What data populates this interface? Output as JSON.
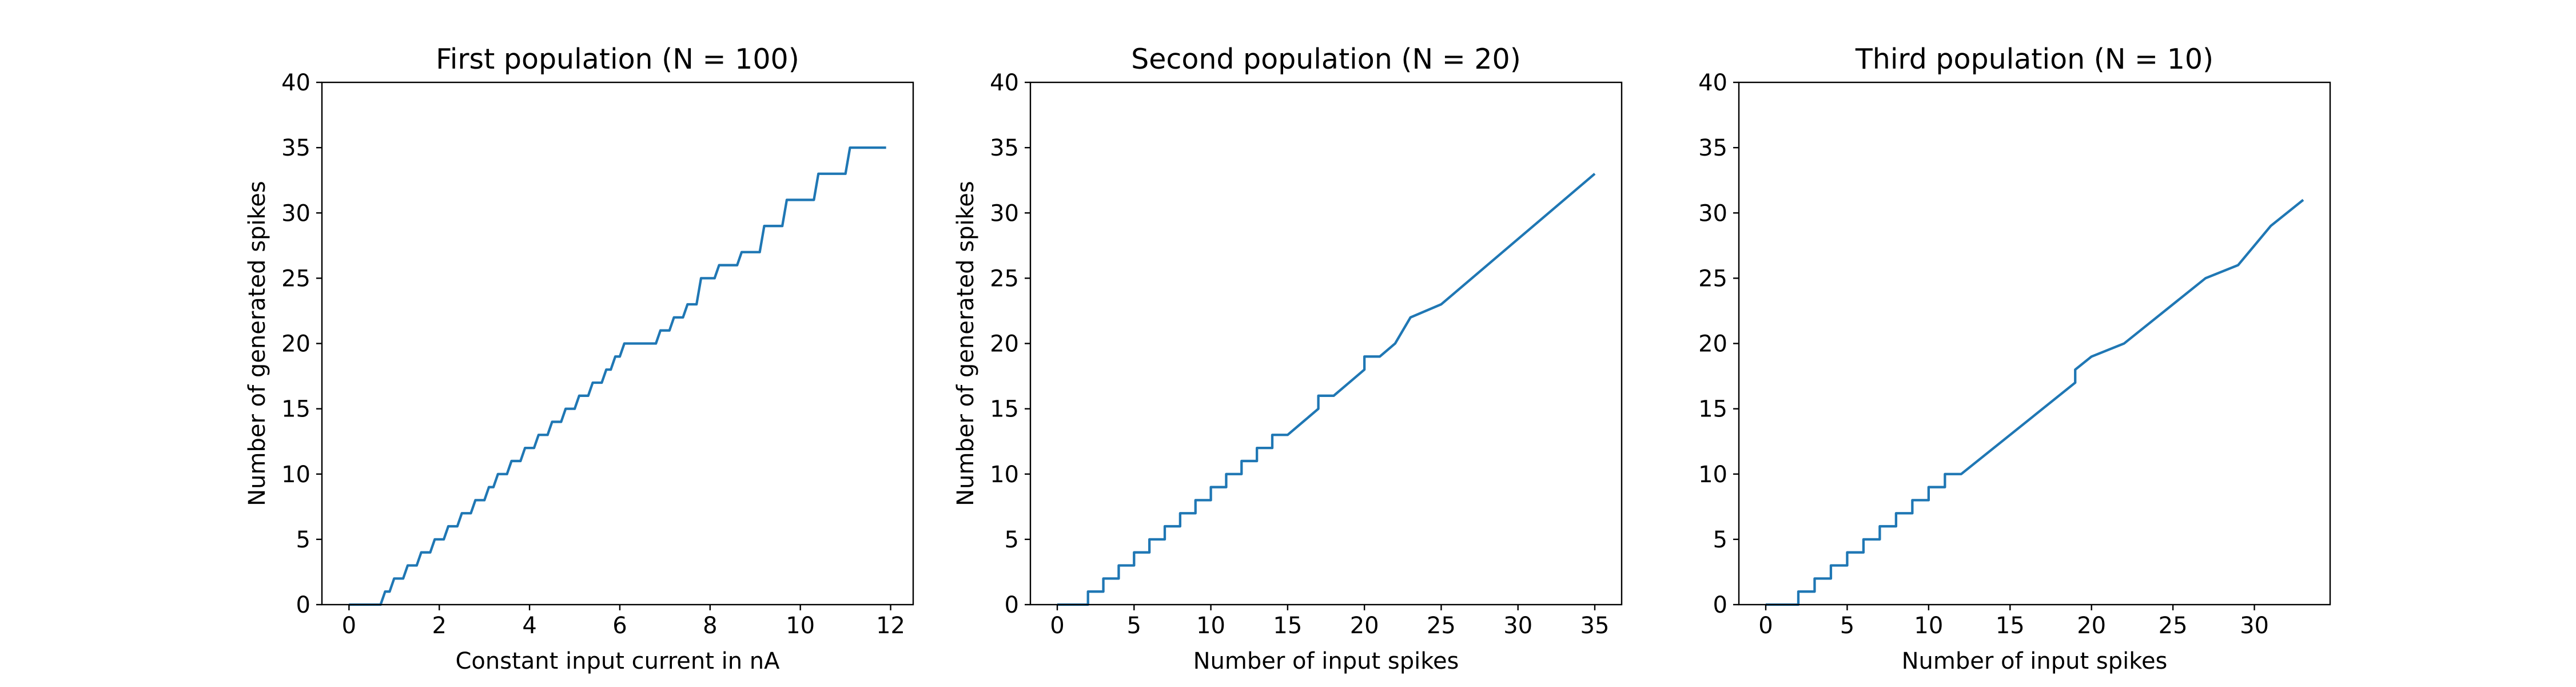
{
  "chart_data": [
    {
      "type": "line",
      "title": "First population (N = 100)",
      "xlabel": "Constant input current in nA",
      "ylabel": "Number of generated spikes",
      "xlim": [
        -0.6,
        12.5
      ],
      "ylim": [
        0,
        40
      ],
      "xticks": [
        0,
        2,
        4,
        6,
        8,
        10,
        12
      ],
      "yticks": [
        0,
        5,
        10,
        15,
        20,
        25,
        30,
        35,
        40
      ],
      "series": [
        {
          "color": "#1f77b4",
          "x": [
            0,
            0.7,
            0.8,
            0.9,
            1.0,
            1.2,
            1.3,
            1.5,
            1.6,
            1.8,
            1.9,
            2.1,
            2.2,
            2.4,
            2.5,
            2.7,
            2.8,
            3.0,
            3.1,
            3.2,
            3.3,
            3.5,
            3.6,
            3.8,
            3.9,
            4.1,
            4.2,
            4.4,
            4.5,
            4.7,
            4.8,
            5.0,
            5.1,
            5.3,
            5.4,
            5.6,
            5.7,
            5.8,
            5.9,
            6.0,
            6.1,
            6.8,
            6.9,
            7.1,
            7.2,
            7.4,
            7.5,
            7.7,
            7.8,
            8.1,
            8.2,
            8.6,
            8.7,
            9.1,
            9.2,
            9.6,
            9.7,
            10.3,
            10.4,
            11.0,
            11.1,
            11.9
          ],
          "values": [
            0,
            0,
            1,
            1,
            2,
            2,
            3,
            3,
            4,
            4,
            5,
            5,
            6,
            6,
            7,
            7,
            8,
            8,
            9,
            9,
            10,
            10,
            11,
            11,
            12,
            12,
            13,
            13,
            14,
            14,
            15,
            15,
            16,
            16,
            17,
            17,
            18,
            18,
            19,
            19,
            20,
            20,
            21,
            21,
            22,
            22,
            23,
            23,
            25,
            25,
            26,
            26,
            27,
            27,
            29,
            29,
            31,
            31,
            33,
            33,
            35,
            35
          ]
        }
      ]
    },
    {
      "type": "line",
      "title": "Second population (N = 20)",
      "xlabel": "Number of input spikes",
      "ylabel": "Number of generated spikes",
      "xlim": [
        -1.75,
        36.75
      ],
      "ylim": [
        0,
        40
      ],
      "xticks": [
        0,
        5,
        10,
        15,
        20,
        25,
        30,
        35
      ],
      "yticks": [
        0,
        5,
        10,
        15,
        20,
        25,
        30,
        35,
        40
      ],
      "series": [
        {
          "color": "#1f77b4",
          "x": [
            0,
            2,
            2,
            3,
            3,
            4,
            4,
            5,
            5,
            6,
            6,
            7,
            7,
            8,
            8,
            9,
            9,
            10,
            10,
            11,
            11,
            12,
            12,
            13,
            13,
            14,
            14,
            15,
            16,
            17,
            17,
            18,
            19,
            20,
            20,
            21,
            22,
            23,
            25,
            35
          ],
          "values": [
            0,
            0,
            1,
            1,
            2,
            2,
            3,
            3,
            4,
            4,
            5,
            5,
            6,
            6,
            7,
            7,
            8,
            8,
            9,
            9,
            10,
            10,
            11,
            11,
            12,
            12,
            13,
            13,
            14,
            15,
            16,
            16,
            17,
            18,
            19,
            19,
            20,
            22,
            23,
            33
          ]
        }
      ]
    },
    {
      "type": "line",
      "title": "Third population (N = 10)",
      "xlabel": "Number of input spikes",
      "xlim": [
        -1.65,
        34.65
      ],
      "ylim": [
        0,
        40
      ],
      "xticks": [
        0,
        5,
        10,
        15,
        20,
        25,
        30
      ],
      "yticks": [
        0,
        5,
        10,
        15,
        20,
        25,
        30,
        35,
        40
      ],
      "series": [
        {
          "color": "#1f77b4",
          "x": [
            0,
            2,
            2,
            3,
            3,
            4,
            4,
            5,
            5,
            6,
            6,
            7,
            7,
            8,
            8,
            9,
            9,
            10,
            10,
            11,
            11,
            12,
            19,
            19,
            20,
            22,
            27,
            29,
            31,
            33
          ],
          "values": [
            0,
            0,
            1,
            1,
            2,
            2,
            3,
            3,
            4,
            4,
            5,
            5,
            6,
            6,
            7,
            7,
            8,
            8,
            9,
            9,
            10,
            10,
            17,
            18,
            19,
            20,
            25,
            26,
            29,
            31
          ]
        }
      ]
    }
  ]
}
